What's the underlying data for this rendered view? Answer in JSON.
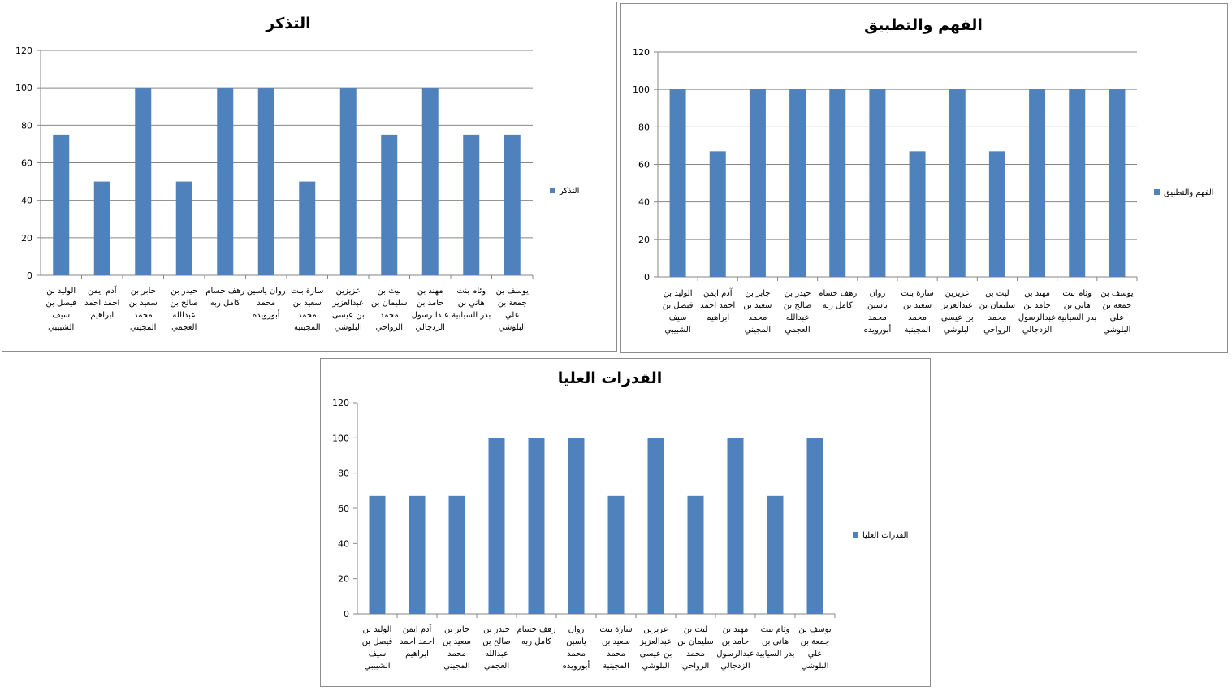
{
  "colors": {
    "bar": "#4f81bd",
    "grid": "#868686",
    "axis": "#868686"
  },
  "chart_data": [
    {
      "type": "bar",
      "title": "التذكر",
      "legend": "التذكر",
      "legend_position": "right",
      "ylim": [
        0,
        120
      ],
      "yticks": [
        0,
        20,
        40,
        60,
        80,
        100,
        120
      ],
      "grid": true,
      "categories": [
        "الوليد بن فيصل بن سيف الشبيبي",
        "آدم ايمن احمد احمد ابراهيم",
        "جابر بن سعيد بن محمد المجيني",
        "حيدر بن صالح بن عبدالله العجمي",
        "رهف حسام كامل ربه",
        "روان ياسين محمد أبورويده",
        "سارة بنت سعيد بن محمد المجينية",
        "عزيزين عبدالعزيز بن عيسى البلوشي",
        "ليث بن سليمان بن محمد الرواحي",
        "مهند بن حامد بن عبدالرسول الزدجالي",
        "وئام بنت هاني بن بدر السيابية",
        "يوسف بن جمعة بن علي البلوشي"
      ],
      "category_lines": [
        [
          "الوليد بن",
          "فيصل بن",
          "سيف",
          "الشبيبي"
        ],
        [
          "آدم ايمن",
          "احمد احمد",
          "ابراهيم"
        ],
        [
          "جابر بن",
          "سعيد بن",
          "محمد",
          "المجيني"
        ],
        [
          "حيدر بن",
          "صالح بن",
          "عبدالله",
          "العجمي"
        ],
        [
          "رهف حسام",
          "كامل ربه"
        ],
        [
          "روان ياسين",
          "محمد",
          "أبورويده"
        ],
        [
          "سارة بنت",
          "سعيد بن",
          "محمد",
          "المجينية"
        ],
        [
          "عزيزين",
          "عبدالعزيز",
          "بن عيسى",
          "البلوشي"
        ],
        [
          "ليث بن",
          "سليمان بن",
          "محمد",
          "الرواحي"
        ],
        [
          "مهند بن",
          "حامد بن",
          "عبدالرسول",
          "الزدجالي"
        ],
        [
          "وئام بنت",
          "هاني بن",
          "بدر السيابية"
        ],
        [
          "يوسف بن",
          "جمعة بن",
          "علي",
          "البلوشي"
        ]
      ],
      "values": [
        75,
        50,
        100,
        50,
        100,
        100,
        50,
        100,
        75,
        100,
        75,
        75
      ]
    },
    {
      "type": "bar",
      "title": "الفهم والتطبيق",
      "legend": "الفهم والتطبيق",
      "legend_position": "right",
      "ylim": [
        0,
        120
      ],
      "yticks": [
        0,
        20,
        40,
        60,
        80,
        100,
        120
      ],
      "grid": true,
      "categories": [
        "الوليد بن فيصل بن سيف الشبيبي",
        "آدم ايمن احمد احمد ابراهيم",
        "جابر بن سعيد بن محمد المجيني",
        "حيدر بن صالح بن عبدالله العجمي",
        "رهف حسام كامل ربه",
        "روان ياسين محمد أبورويده",
        "سارة بنت سعيد بن محمد المجينية",
        "عزيزين عبدالعزيز بن عيسى البلوشي",
        "ليث بن سليمان بن محمد الرواحي",
        "مهند بن حامد بن عبدالرسول الزدجالي",
        "وئام بنت هاني بن بدر السيابية",
        "يوسف بن جمعة بن علي البلوشي"
      ],
      "category_lines": [
        [
          "الوليد بن",
          "فيصل بن",
          "سيف",
          "الشبيبي"
        ],
        [
          "آدم ايمن",
          "احمد احمد",
          "ابراهيم"
        ],
        [
          "جابر بن",
          "سعيد بن",
          "محمد",
          "المجيني"
        ],
        [
          "حيدر بن",
          "صالح بن",
          "عبدالله",
          "العجمي"
        ],
        [
          "رهف حسام",
          "كامل ربه"
        ],
        [
          "روان",
          "ياسين",
          "محمد",
          "أبورويده"
        ],
        [
          "سارة بنت",
          "سعيد بن",
          "محمد",
          "المجينية"
        ],
        [
          "عزيزين",
          "عبدالعزيز",
          "بن عيسى",
          "البلوشي"
        ],
        [
          "ليث بن",
          "سليمان بن",
          "محمد",
          "الرواحي"
        ],
        [
          "مهند بن",
          "حامد بن",
          "عبدالرسول",
          "الزدجالي"
        ],
        [
          "وئام بنت",
          "هاني بن",
          "بدر السيابية"
        ],
        [
          "يوسف بن",
          "جمعة بن",
          "علي",
          "البلوشي"
        ]
      ],
      "values": [
        100,
        67,
        100,
        100,
        100,
        100,
        67,
        100,
        67,
        100,
        100,
        100
      ]
    },
    {
      "type": "bar",
      "title": "القدرات العليا",
      "legend": "القدرات العليا",
      "legend_position": "right",
      "ylim": [
        0,
        120
      ],
      "yticks": [
        0,
        20,
        40,
        60,
        80,
        100,
        120
      ],
      "grid": false,
      "categories": [
        "الوليد بن فيصل بن سيف الشبيبي",
        "آدم ايمن احمد احمد ابراهيم",
        "جابر بن سعيد بن محمد المجيني",
        "حيدر بن صالح بن عبدالله العجمي",
        "رهف حسام كامل ربه",
        "روان ياسين محمد أبورويده",
        "سارة بنت سعيد بن محمد المجينية",
        "عزيزين عبدالعزيز بن عيسى البلوشي",
        "ليث بن سليمان بن محمد الرواحي",
        "مهند بن حامد بن عبدالرسول الزدجالي",
        "وئام بنت هاني بن بدر السيابية",
        "يوسف بن جمعة بن علي البلوشي"
      ],
      "category_lines": [
        [
          "الوليد بن",
          "فيصل بن",
          "سيف",
          "الشبيبي"
        ],
        [
          "آدم ايمن",
          "احمد احمد",
          "ابراهيم"
        ],
        [
          "جابر بن",
          "سعيد بن",
          "محمد",
          "المجيني"
        ],
        [
          "حيدر بن",
          "صالح بن",
          "عبدالله",
          "العجمي"
        ],
        [
          "رهف حسام",
          "كامل ربه"
        ],
        [
          "روان",
          "ياسين",
          "محمد",
          "أبورويده"
        ],
        [
          "سارة بنت",
          "سعيد بن",
          "محمد",
          "المجينية"
        ],
        [
          "عزيزين",
          "عبدالعزيز",
          "بن عيسى",
          "البلوشي"
        ],
        [
          "ليث بن",
          "سليمان بن",
          "محمد",
          "الرواحي"
        ],
        [
          "مهند بن",
          "حامد بن",
          "عبدالرسول",
          "الزدجالي"
        ],
        [
          "وئام بنت",
          "هاني بن",
          "بدر السيابية"
        ],
        [
          "يوسف بن",
          "جمعة بن",
          "علي",
          "البلوشي"
        ]
      ],
      "values": [
        67,
        67,
        67,
        100,
        100,
        100,
        67,
        100,
        67,
        100,
        67,
        100
      ]
    }
  ]
}
